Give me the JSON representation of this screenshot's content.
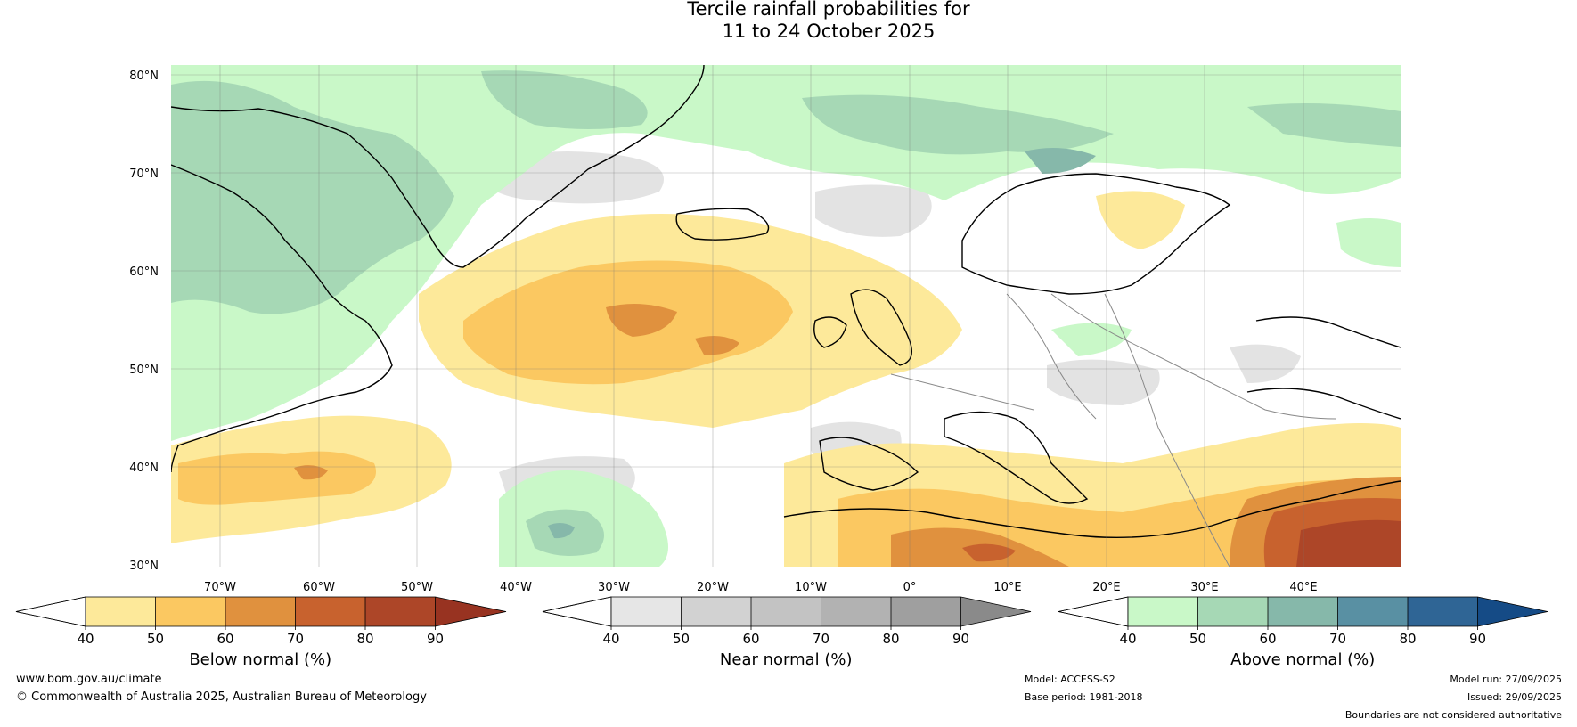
{
  "title": {
    "line1": "Tercile rainfall probabilities for",
    "line2": "11 to 24 October 2025"
  },
  "map": {
    "lat_ticks": [
      "80°N",
      "70°N",
      "60°N",
      "50°N",
      "40°N",
      "30°N"
    ],
    "lon_ticks": [
      "70°W",
      "60°W",
      "50°W",
      "40°W",
      "30°W",
      "20°W",
      "10°W",
      "0°",
      "10°E",
      "20°E",
      "30°E",
      "40°E"
    ],
    "colors": {
      "ocean_white": "#ffffff",
      "coast": "#000000",
      "border": "#888888",
      "grid": "#777777"
    }
  },
  "colorbars": [
    {
      "label": "Below normal (%)",
      "ticks": [
        "40",
        "50",
        "60",
        "70",
        "80",
        "90"
      ],
      "colors": [
        "#ffffff",
        "#fde99a",
        "#fbc861",
        "#e0913e",
        "#c8622e",
        "#ad4628",
        "#983321"
      ]
    },
    {
      "label": "Near normal (%)",
      "ticks": [
        "40",
        "50",
        "60",
        "70",
        "80",
        "90"
      ],
      "colors": [
        "#ffffff",
        "#e6e6e6",
        "#d2d2d2",
        "#c3c3c3",
        "#b2b2b2",
        "#9f9f9f",
        "#8a8a8a"
      ]
    },
    {
      "label": "Above normal (%)",
      "ticks": [
        "40",
        "50",
        "60",
        "70",
        "80",
        "90"
      ],
      "colors": [
        "#ffffff",
        "#c9f8c8",
        "#a6d8b5",
        "#86b8aa",
        "#5990a3",
        "#2f6595",
        "#154b86"
      ]
    }
  ],
  "footer": {
    "website": "www.bom.gov.au/climate",
    "copyright": "© Commonwealth of Australia 2025, Australian Bureau of Meteorology",
    "model": "Model: ACCESS-S2",
    "base_period": "Base period: 1981-2018",
    "model_run": "Model run: 27/09/2025",
    "issued": "Issued: 29/09/2025",
    "disclaimer": "Boundaries are not considered authoritative"
  }
}
